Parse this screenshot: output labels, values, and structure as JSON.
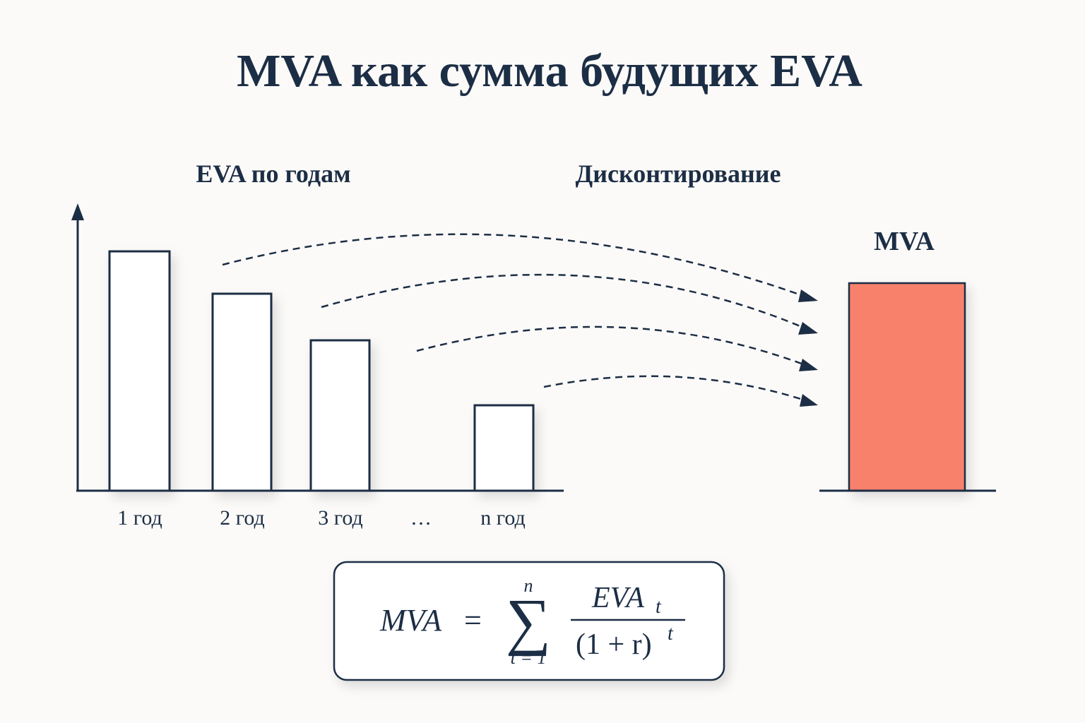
{
  "header": {
    "title": "MVA как сумма будущих EVA"
  },
  "left_panel": {
    "title": "EVA по годам",
    "labels": [
      "1 год",
      "2 год",
      "3 год",
      "…",
      "n год"
    ]
  },
  "arrows": {
    "title": "Дисконтирование"
  },
  "right_panel": {
    "title": "MVA"
  },
  "formula": {
    "lhs": "MVA",
    "equals": "=",
    "sigma": "∑",
    "upper": "n",
    "lower": "t = 1",
    "numerator": "EVA",
    "numerator_sub": "t",
    "denominator": "(1 + r)",
    "denominator_sup": "t"
  }
}
